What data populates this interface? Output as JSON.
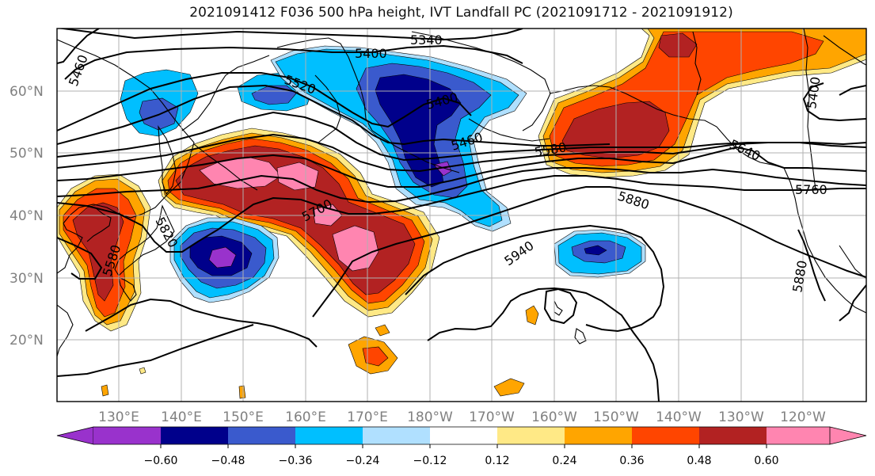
{
  "title": "2021091412 F036 500 hPa height, IVT Landfall PC (2021091712 - 2021091912)",
  "latitude_labels": [
    "60°N",
    "50°N",
    "40°N",
    "30°N",
    "20°N"
  ],
  "longitude_labels": [
    "130°E",
    "140°E",
    "150°E",
    "160°E",
    "170°E",
    "180°W",
    "170°W",
    "160°W",
    "150°W",
    "140°W",
    "130°W",
    "120°W"
  ],
  "contour_labels": [
    {
      "text": "5340"
    },
    {
      "text": "5400"
    },
    {
      "text": "5460"
    },
    {
      "text": "5520"
    },
    {
      "text": "5400"
    },
    {
      "text": "5460"
    },
    {
      "text": "5580"
    },
    {
      "text": "5640"
    },
    {
      "text": "5760"
    },
    {
      "text": "5880"
    },
    {
      "text": "5700"
    },
    {
      "text": "5820"
    },
    {
      "text": "5940"
    },
    {
      "text": "5880"
    },
    {
      "text": "5400"
    },
    {
      "text": "5580"
    }
  ],
  "colorbar": {
    "tick_labels": [
      "−0.60",
      "−0.48",
      "−0.36",
      "−0.24",
      "−0.12",
      "0.12",
      "0.24",
      "0.36",
      "0.48",
      "0.60"
    ],
    "colors": [
      "#9932CC",
      "#00008B",
      "#3A5ACD",
      "#00BFFF",
      "#B0E0FF",
      "#FFFFFF",
      "#FFE986",
      "#FFA500",
      "#FF4500",
      "#B22222",
      "#FF85B0"
    ]
  },
  "colors": {
    "pink": "#FF85B0",
    "darkred": "#B22222",
    "red": "#FF4500",
    "orange": "#FFA500",
    "yellow": "#FFE986",
    "lightblue": "#B0E0FF",
    "skyblue": "#00BFFF",
    "blue": "#3A5ACD",
    "navy": "#00008B",
    "purple": "#9932CC"
  }
}
